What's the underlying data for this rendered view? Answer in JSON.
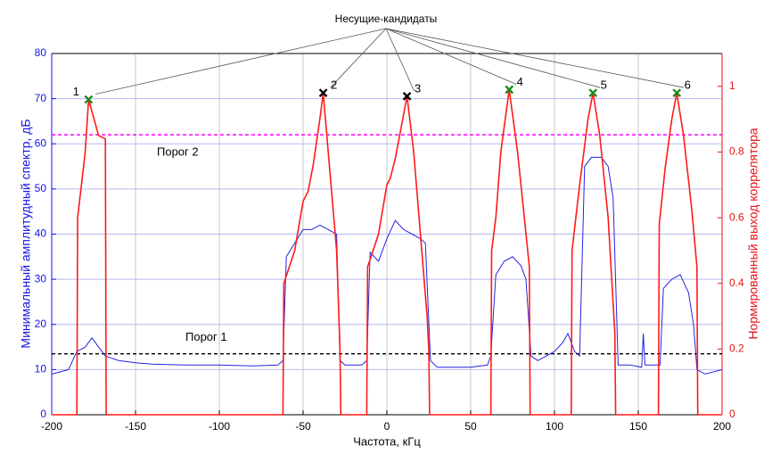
{
  "chart_data": {
    "type": "line",
    "annotation": "Несущие-кандидаты",
    "xlabel": "Частота, кГц",
    "ylabel": "Минимальный амплитудный спектр, дБ",
    "y2label": "Нормированный выход коррелятора",
    "xlim": [
      -200,
      200
    ],
    "xticks": [
      -200,
      -150,
      -100,
      -50,
      0,
      50,
      100,
      150,
      200
    ],
    "ylim": [
      0,
      80
    ],
    "yticks": [
      0,
      10,
      20,
      30,
      40,
      50,
      60,
      70,
      80
    ],
    "y2lim": [
      0,
      1.1
    ],
    "y2ticks": [
      0,
      0.2,
      0.4,
      0.6,
      0.8,
      1
    ],
    "grid": true,
    "y_color": "#1414e6",
    "y2_color": "#e61414",
    "series": [
      {
        "color": "#2424e0",
        "x": [
          -200,
          -190,
          -185,
          -180,
          -176,
          -172,
          -168,
          -160,
          -150,
          -140,
          -120,
          -100,
          -80,
          -65,
          -62,
          -60,
          -55,
          -50,
          -45,
          -40,
          -35,
          -30,
          -28,
          -25,
          -15,
          -12,
          -10,
          -5,
          0,
          5,
          10,
          15,
          20,
          23,
          26,
          30,
          50,
          60,
          62,
          65,
          70,
          75,
          80,
          83,
          86,
          90,
          100,
          105,
          108,
          112,
          115,
          118,
          122,
          128,
          132,
          135,
          138,
          145,
          152,
          153,
          154,
          160,
          163,
          165,
          170,
          175,
          180,
          183,
          185,
          190,
          200
        ],
        "values": [
          9,
          10,
          14,
          15,
          17,
          15,
          13,
          12,
          11.5,
          11.2,
          11,
          11,
          10.8,
          11,
          12,
          35,
          38,
          41,
          41,
          42,
          41,
          40,
          12,
          11,
          11,
          12,
          36,
          34,
          39,
          43,
          41,
          40,
          39,
          38,
          12,
          10.5,
          10.5,
          11,
          13,
          31,
          34,
          35,
          33,
          30,
          13,
          12,
          14,
          16,
          18,
          14,
          13,
          55,
          57,
          57,
          55,
          48,
          11,
          11,
          10.5,
          18,
          11,
          11,
          11,
          28,
          30,
          31,
          27,
          20,
          10,
          9,
          10
        ]
      },
      {
        "color": "#ff1a1a",
        "axis": "y2",
        "x": [
          -200,
          -185,
          -184.5,
          -180,
          -178,
          -172,
          -168,
          -167.5,
          -62,
          -61.5,
          -55,
          -50,
          -47,
          -44,
          -40,
          -38,
          -35,
          -30,
          -28,
          -27.5,
          -12,
          -11.5,
          -5,
          0,
          2,
          5,
          12,
          16,
          20,
          24,
          25,
          25.5,
          62,
          62.5,
          65,
          68,
          73,
          78,
          82,
          85,
          85.5,
          110,
          110.5,
          115,
          120,
          123,
          127,
          132,
          136,
          136.5,
          162,
          162.5,
          166,
          170,
          173,
          177,
          182,
          185,
          185.5,
          200
        ],
        "values": [
          0,
          0,
          0.6,
          0.8,
          0.96,
          0.85,
          0.84,
          0,
          0,
          0.4,
          0.5,
          0.65,
          0.68,
          0.76,
          0.9,
          0.98,
          0.8,
          0.5,
          0.2,
          0,
          0,
          0.45,
          0.55,
          0.7,
          0.72,
          0.78,
          0.97,
          0.8,
          0.55,
          0.3,
          0.2,
          0,
          0,
          0.5,
          0.6,
          0.8,
          0.99,
          0.8,
          0.6,
          0.45,
          0,
          0,
          0.5,
          0.7,
          0.9,
          0.98,
          0.85,
          0.6,
          0.25,
          0,
          0,
          0.58,
          0.75,
          0.9,
          0.98,
          0.85,
          0.62,
          0.45,
          0,
          0
        ]
      }
    ],
    "thresholds": [
      {
        "label": "Порог 1",
        "value": 13.5,
        "color": "#000000"
      },
      {
        "label": "Порог 2",
        "value": 62,
        "color": "#ff00ff"
      }
    ],
    "candidates": [
      {
        "label": "1",
        "x": -178,
        "value": 0.96,
        "color": "#1a8a1a"
      },
      {
        "label": "2",
        "x": -38,
        "value": 0.98,
        "color": "#000000"
      },
      {
        "label": "3",
        "x": 12,
        "value": 0.97,
        "color": "#000000"
      },
      {
        "label": "4",
        "x": 73,
        "value": 0.99,
        "color": "#1a8a1a"
      },
      {
        "label": "5",
        "x": 123,
        "value": 0.98,
        "color": "#1a8a1a"
      },
      {
        "label": "6",
        "x": 173,
        "value": 0.98,
        "color": "#1a8a1a"
      }
    ]
  }
}
